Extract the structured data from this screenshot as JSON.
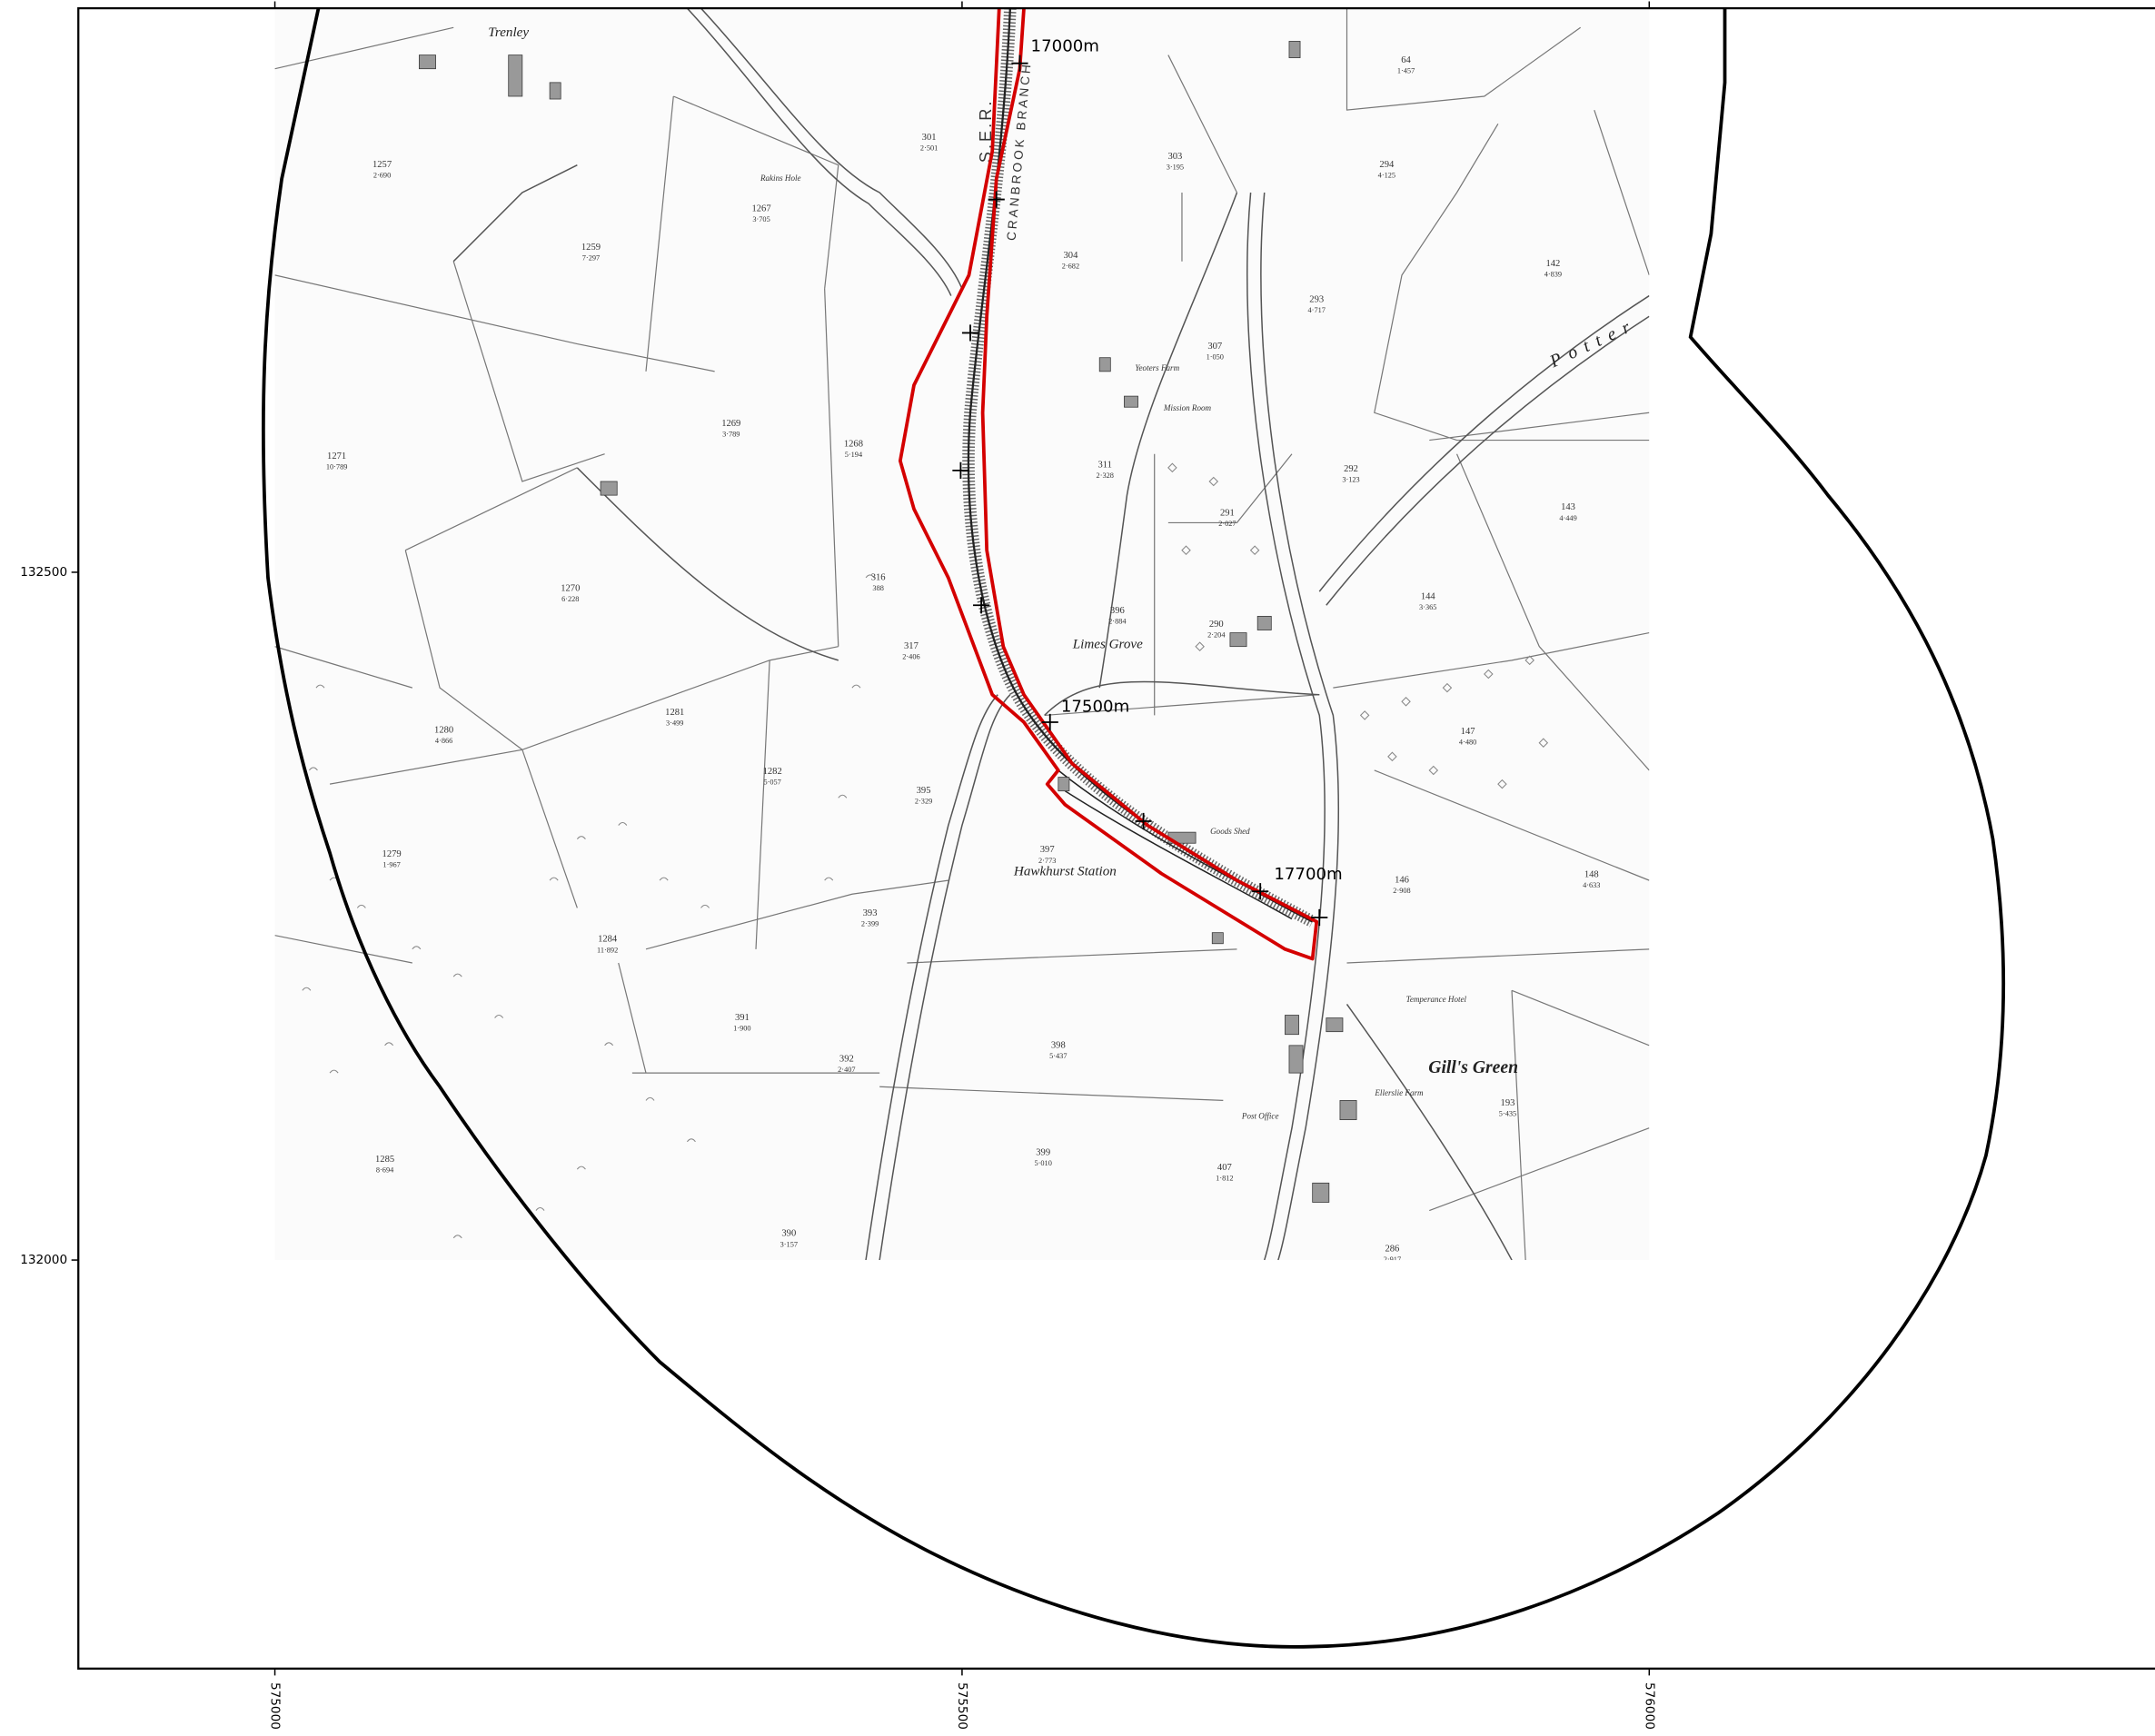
{
  "map": {
    "axes": {
      "xlim": [
        574857,
        576368
      ],
      "ylim": [
        131703,
        132910
      ],
      "xticks": [
        575000,
        575500,
        576000
      ],
      "yticks": [
        132500,
        132000
      ]
    },
    "chainages": [
      "17000m",
      "17500m",
      "17700m"
    ],
    "places": {
      "trenley": "Trenley",
      "rakins_hole": "Rakins Hole",
      "yeoters_farm": "Yeoters Farm",
      "limes_grove": "Limes Grove",
      "hawkhurst_station": "Hawkhurst Station",
      "temperance_hotel": "Temperance Hotel",
      "gills_green": "Gill's Green",
      "ellerslie_farm": "Ellerslie Farm",
      "post_office": "Post Office",
      "mission_room": "Mission Room",
      "goods_shed": "Goods Shed",
      "railway": "S.E.R.",
      "branch": "CRANBROOK BRANCH",
      "potters": "Potter"
    },
    "parcels": [
      {
        "number": "1257",
        "area": "2·690"
      },
      {
        "number": "1259",
        "area": "7·297"
      },
      {
        "number": "1269",
        "area": "3·789"
      },
      {
        "number": "1271",
        "area": "10·789"
      },
      {
        "number": "1270",
        "area": "6·228"
      },
      {
        "number": "1268",
        "area": "5·194"
      },
      {
        "number": "1281",
        "area": "3·499"
      },
      {
        "number": "1280",
        "area": "4·866"
      },
      {
        "number": "1279",
        "area": "1·967"
      },
      {
        "number": "1282",
        "area": "5·057"
      },
      {
        "number": "1284",
        "area": "11·892"
      },
      {
        "number": "395",
        "area": "2·329"
      },
      {
        "number": "397",
        "area": "2·773"
      },
      {
        "number": "393",
        "area": "2·399"
      },
      {
        "number": "391",
        "area": "1·900"
      },
      {
        "number": "392",
        "area": "2·407"
      },
      {
        "number": "398",
        "area": "5·437"
      },
      {
        "number": "399",
        "area": "5·010"
      },
      {
        "number": "390",
        "area": "3·157"
      },
      {
        "number": "1285",
        "area": "8·694"
      },
      {
        "number": "301",
        "area": "2·501"
      },
      {
        "number": "1267",
        "area": "3·705"
      },
      {
        "number": "303",
        "area": "3·195"
      },
      {
        "number": "304",
        "area": "2·682"
      },
      {
        "number": "307",
        "area": "1·050"
      },
      {
        "number": "311",
        "area": "2·328"
      },
      {
        "number": "396",
        "area": "2·884"
      },
      {
        "number": "291",
        "area": "2·027"
      },
      {
        "number": "290",
        "area": "2·204"
      },
      {
        "number": "292",
        "area": "3·123"
      },
      {
        "number": "293",
        "area": "4·717"
      },
      {
        "number": "294",
        "area": "4·125"
      },
      {
        "number": "142",
        "area": "4·839"
      },
      {
        "number": "143",
        "area": "4·449"
      },
      {
        "number": "144",
        "area": "3·365"
      },
      {
        "number": "147",
        "area": "4·480"
      },
      {
        "number": "146",
        "area": "2·908"
      },
      {
        "number": "148",
        "area": "4·633"
      },
      {
        "number": "193",
        "area": "5·435"
      },
      {
        "number": "286",
        "area": "2·917"
      },
      {
        "number": "407",
        "area": "1·812"
      },
      {
        "number": "64",
        "area": "1·457"
      },
      {
        "number": "317",
        "area": "2·406"
      },
      {
        "number": "316",
        "area": "388"
      }
    ]
  }
}
